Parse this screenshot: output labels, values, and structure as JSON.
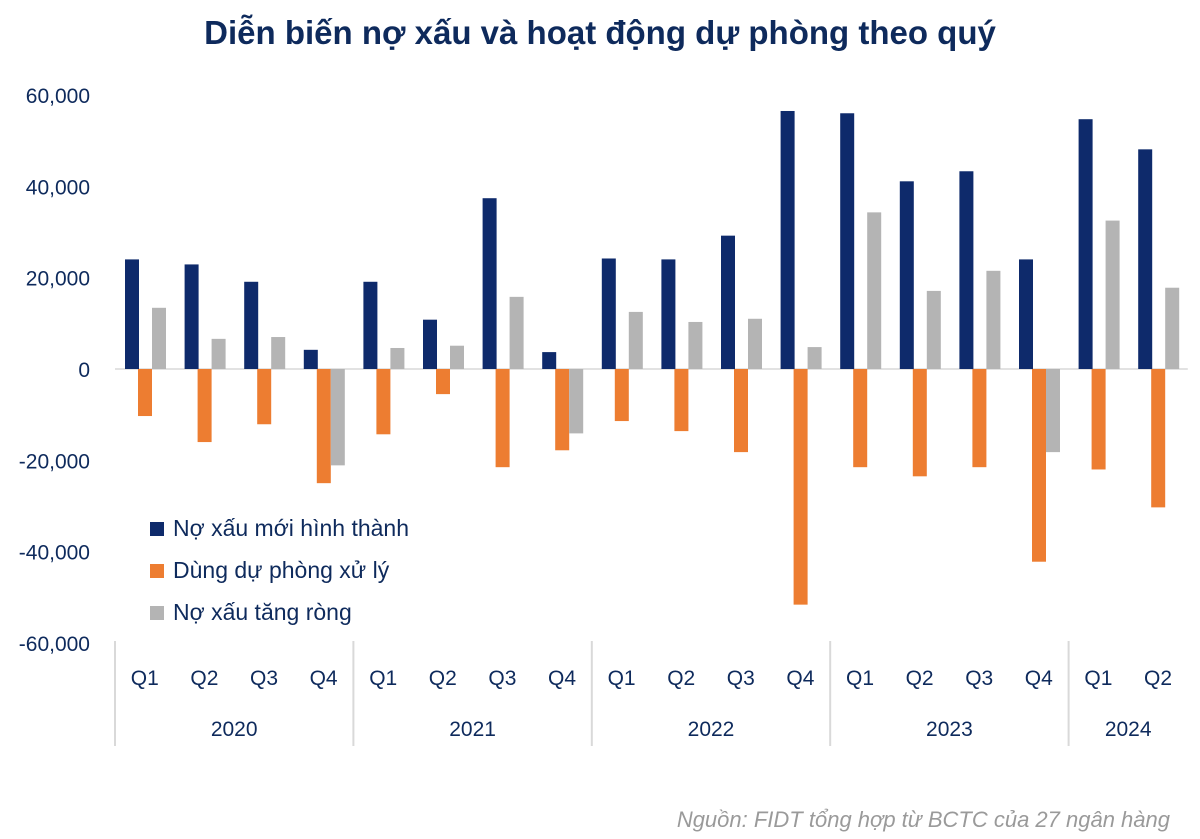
{
  "chart_data": {
    "type": "bar",
    "title": "Diễn biến nợ xấu và hoạt động dự phòng theo quý",
    "source": "Nguồn: FIDT tổng hợp từ BCTC của 27 ngân hàng",
    "years": [
      {
        "label": "2020",
        "quarters": [
          "Q1",
          "Q2",
          "Q3",
          "Q4"
        ]
      },
      {
        "label": "2021",
        "quarters": [
          "Q1",
          "Q2",
          "Q3",
          "Q4"
        ]
      },
      {
        "label": "2022",
        "quarters": [
          "Q1",
          "Q2",
          "Q3",
          "Q4"
        ]
      },
      {
        "label": "2023",
        "quarters": [
          "Q1",
          "Q2",
          "Q3",
          "Q4"
        ]
      },
      {
        "label": "2024",
        "quarters": [
          "Q1",
          "Q2"
        ]
      }
    ],
    "ylim": [
      -60000,
      60000
    ],
    "yticks": [
      "60,000",
      "40,000",
      "20,000",
      "0",
      "-20,000",
      "-40,000",
      "-60,000"
    ],
    "ytick_values": [
      60000,
      40000,
      20000,
      0,
      -20000,
      -40000,
      -60000
    ],
    "grid": false,
    "legend_position": "bottom-left",
    "series": [
      {
        "name": "Nợ xấu mới hình thành",
        "color": "#0e2a6b",
        "values": [
          24000,
          22900,
          19100,
          4200,
          19100,
          10800,
          37400,
          3700,
          24200,
          24000,
          29200,
          56500,
          56000,
          41100,
          43300,
          24000,
          54700,
          48100
        ]
      },
      {
        "name": "Dùng dự phòng xử lý",
        "color": "#ed7d31",
        "values": [
          -10300,
          -16000,
          -12100,
          -25000,
          -14300,
          -5500,
          -21500,
          -17800,
          -11400,
          -13600,
          -18200,
          -51600,
          -21500,
          -23500,
          -21500,
          -42200,
          -22000,
          -30300
        ]
      },
      {
        "name": "Nợ xấu tăng ròng",
        "color": "#b4b4b4",
        "values": [
          13400,
          6600,
          7000,
          -21100,
          4600,
          5100,
          15800,
          -14100,
          12500,
          10300,
          11000,
          4800,
          34300,
          17100,
          21500,
          -18200,
          32500,
          17800
        ]
      }
    ]
  }
}
